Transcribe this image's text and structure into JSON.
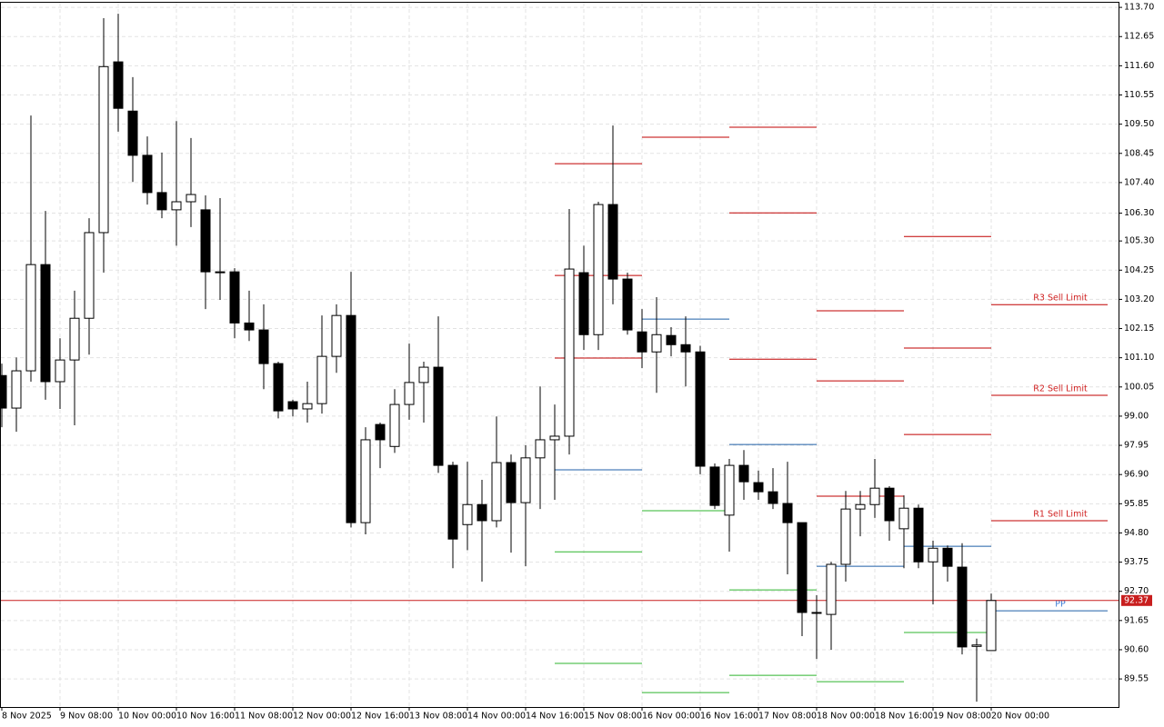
{
  "chart_data": {
    "type": "candlestick",
    "categories": [
      "8 Nov 2025",
      null,
      null,
      null,
      "9 Nov 08:00",
      null,
      null,
      null,
      "10 Nov 00:00",
      null,
      null,
      null,
      "10 Nov 16:00",
      null,
      null,
      null,
      "11 Nov 08:00",
      null,
      null,
      null,
      "12 Nov 00:00",
      null,
      null,
      null,
      "12 Nov 16:00",
      null,
      null,
      null,
      "13 Nov 08:00",
      null,
      null,
      null,
      "14 Nov 00:00",
      null,
      null,
      null,
      "14 Nov 16:00",
      null,
      null,
      null,
      "15 Nov 08:00",
      null,
      null,
      null,
      "16 Nov 00:00",
      null,
      null,
      null,
      "16 Nov 16:00",
      null,
      null,
      null,
      "17 Nov 08:00",
      null,
      null,
      null,
      "18 Nov 00:00",
      null,
      null,
      null,
      "18 Nov 16:00",
      null,
      null,
      null,
      "19 Nov 08:00",
      null,
      null,
      null,
      "20 Nov 00:00"
    ],
    "open": [
      100.46,
      99.29,
      100.63,
      104.45,
      100.24,
      101.02,
      102.52,
      105.6,
      111.74,
      109.97,
      108.38,
      107.04,
      106.42,
      106.71,
      106.42,
      104.19,
      104.19,
      102.35,
      102.1,
      100.89,
      99.52,
      99.26,
      99.45,
      101.15,
      102.62,
      95.17,
      98.7,
      97.91,
      99.42,
      100.21,
      100.76,
      97.23,
      95.1,
      95.82,
      95.24,
      97.33,
      95.89,
      97.5,
      98.15,
      98.28,
      104.16,
      101.93,
      106.61,
      103.93,
      102.03,
      101.31,
      101.9,
      101.57,
      101.31,
      97.17,
      95.44,
      97.23,
      96.61,
      96.28,
      95.86,
      95.17,
      91.94,
      91.87,
      93.67,
      95.66,
      95.82,
      96.41,
      94.95,
      95.69,
      93.76,
      94.25,
      93.57,
      90.72,
      90.57
    ],
    "high": [
      100.89,
      101.11,
      109.81,
      106.38,
      101.8,
      103.51,
      106.12,
      113.31,
      113.47,
      111.19,
      109.06,
      108.48,
      109.61,
      109.0,
      106.94,
      106.84,
      104.32,
      103.51,
      103.02,
      100.96,
      99.59,
      100.24,
      102.62,
      103.02,
      104.19,
      98.6,
      98.77,
      99.97,
      101.61,
      100.96,
      102.59,
      97.36,
      97.36,
      96.71,
      98.99,
      97.62,
      97.95,
      100.07,
      99.42,
      106.45,
      105.13,
      106.71,
      109.45,
      104.16,
      102.85,
      103.28,
      102.2,
      102.59,
      101.53,
      97.3,
      97.46,
      97.78,
      97.04,
      97.13,
      97.36,
      95.17,
      92.56,
      93.76,
      96.31,
      96.31,
      97.46,
      96.48,
      96.15,
      95.82,
      94.52,
      94.35,
      94.43,
      91.0,
      92.62
    ],
    "low": [
      98.6,
      98.44,
      100.24,
      99.59,
      99.26,
      98.67,
      101.21,
      104.16,
      109.23,
      107.42,
      106.61,
      106.12,
      105.13,
      105.8,
      102.85,
      103.18,
      101.8,
      101.7,
      99.97,
      98.92,
      98.99,
      98.77,
      99.09,
      100.56,
      95.0,
      94.75,
      97.13,
      97.68,
      98.87,
      98.77,
      96.96,
      93.53,
      94.18,
      93.05,
      95.0,
      94.09,
      93.6,
      95.66,
      95.99,
      97.62,
      101.38,
      101.38,
      103.02,
      101.93,
      100.73,
      99.84,
      101.15,
      100.07,
      96.91,
      95.66,
      94.13,
      95.99,
      95.99,
      95.66,
      93.31,
      91.09,
      90.27,
      90.6,
      93.05,
      94.68,
      95.34,
      94.52,
      93.53,
      93.53,
      92.23,
      93.05,
      90.43,
      88.73,
      90.57
    ],
    "close": [
      99.29,
      100.63,
      104.45,
      100.24,
      101.02,
      102.52,
      105.6,
      111.57,
      110.07,
      108.38,
      107.04,
      106.42,
      106.71,
      106.97,
      104.19,
      104.16,
      102.35,
      102.1,
      100.89,
      99.19,
      99.26,
      99.45,
      101.15,
      102.62,
      95.17,
      98.15,
      98.15,
      99.42,
      100.21,
      100.76,
      97.23,
      94.58,
      95.82,
      95.24,
      97.33,
      95.89,
      97.5,
      98.15,
      98.28,
      104.29,
      101.93,
      106.61,
      103.93,
      102.1,
      101.31,
      101.93,
      101.57,
      101.31,
      97.2,
      95.79,
      97.23,
      96.64,
      96.28,
      95.86,
      95.17,
      91.94,
      91.91,
      93.67,
      95.66,
      95.82,
      96.41,
      95.24,
      95.69,
      93.76,
      94.25,
      93.6,
      90.7,
      90.77,
      92.37
    ],
    "current_price": 92.37,
    "ylim": [
      88.54,
      113.9
    ],
    "yticks": [
      {
        "value": 113.7,
        "label": "113.70"
      },
      112.65,
      {
        "value": 111.6,
        "label": "111.60"
      },
      110.55,
      {
        "value": 109.5,
        "label": "109.50"
      },
      108.45,
      {
        "value": 107.4,
        "label": "107.40"
      },
      {
        "value": 106.3,
        "label": "106.30"
      },
      {
        "value": 105.3,
        "label": "105.30"
      },
      104.25,
      {
        "value": 103.2,
        "label": "103.20"
      },
      102.15,
      {
        "value": 101.1,
        "label": "101.10"
      },
      {
        "value": 100.05,
        "label": "100.05"
      },
      {
        "value": 99.0,
        "label": "99.00"
      },
      97.95,
      {
        "value": 96.9,
        "label": "96.90"
      },
      95.85,
      {
        "value": 94.8,
        "label": "94.80"
      },
      93.75,
      {
        "value": 92.7,
        "label": "92.70"
      },
      91.65,
      {
        "value": 90.6,
        "label": "90.60"
      },
      89.55
    ],
    "grid": true,
    "up_color": "#ffffff",
    "down_color": "#000000",
    "price_line_color": "#c81e1e",
    "pivot_days": [
      {
        "levels": [
          {
            "value": 108.08,
            "color": "#c00000"
          },
          {
            "value": 104.06,
            "color": "#c00000"
          },
          {
            "value": 101.09,
            "color": "#c00000"
          },
          {
            "value": 97.07,
            "color": "#1f5fa8"
          },
          {
            "value": 94.12,
            "color": "#2fb52f"
          },
          {
            "value": 90.11,
            "color": "#2fb52f"
          }
        ]
      },
      {
        "levels": [
          {
            "value": 109.03,
            "color": "#c00000"
          },
          {
            "value": 102.49,
            "color": "#1f5fa8"
          },
          {
            "value": 95.6,
            "color": "#2fb52f"
          },
          {
            "value": 89.06,
            "color": "#2fb52f"
          }
        ]
      },
      {
        "levels": [
          {
            "value": 109.39,
            "color": "#c00000"
          },
          {
            "value": 106.31,
            "color": "#c00000"
          },
          {
            "value": 101.05,
            "color": "#c00000"
          },
          {
            "value": 97.98,
            "color": "#1f5fa8"
          },
          {
            "value": 92.75,
            "color": "#2fb52f"
          },
          {
            "value": 89.68,
            "color": "#2fb52f"
          }
        ]
      },
      {
        "levels": [
          {
            "value": 102.79,
            "color": "#c00000"
          },
          {
            "value": 100.27,
            "color": "#c00000"
          },
          {
            "value": 96.12,
            "color": "#c00000"
          },
          {
            "value": 93.6,
            "color": "#1f5fa8"
          },
          {
            "value": 89.45,
            "color": "#2fb52f"
          }
        ]
      },
      {
        "levels": [
          {
            "value": 105.46,
            "color": "#c00000"
          },
          {
            "value": 101.45,
            "color": "#c00000"
          },
          {
            "value": 98.34,
            "color": "#c00000"
          },
          {
            "value": 94.32,
            "color": "#1f5fa8"
          },
          {
            "value": 91.22,
            "color": "#2fb52f"
          }
        ]
      },
      {
        "levels": [
          {
            "value": 103.01,
            "color": "#c00000",
            "label": "R3 Sell Limit"
          },
          {
            "value": 99.75,
            "color": "#c00000",
            "label": "R2 Sell Limit"
          },
          {
            "value": 95.24,
            "color": "#c00000",
            "label": "R1 Sell Limit"
          },
          {
            "value": 92.0,
            "color": "#1f5fa8",
            "label": "PP"
          }
        ]
      }
    ]
  }
}
